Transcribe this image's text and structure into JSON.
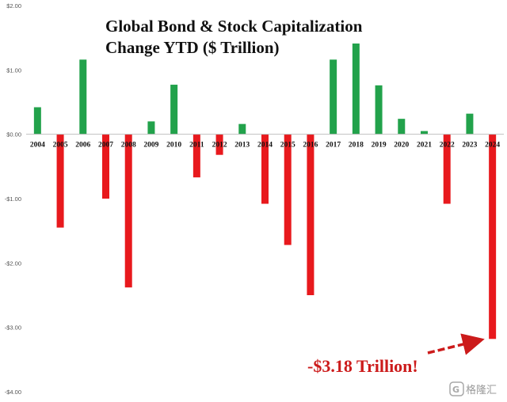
{
  "chart_data": {
    "type": "bar",
    "title_lines": [
      "Global Bond & Stock Capitalization",
      "Change YTD ($ Trillion)"
    ],
    "categories": [
      "2004",
      "2005",
      "2006",
      "2007",
      "2008",
      "2009",
      "2010",
      "2011",
      "2012",
      "2013",
      "2014",
      "2015",
      "2016",
      "2017",
      "2018",
      "2019",
      "2020",
      "2021",
      "2022",
      "2023",
      "2024"
    ],
    "values": [
      0.42,
      -1.45,
      1.16,
      -1.0,
      -2.38,
      0.2,
      0.77,
      -0.67,
      -0.32,
      0.16,
      -1.08,
      -1.72,
      -2.5,
      1.16,
      1.41,
      0.76,
      0.24,
      0.05,
      -1.08,
      0.32,
      -3.18
    ],
    "ylim": [
      -4.0,
      2.0
    ],
    "yticks": [
      2,
      1,
      0,
      -1,
      -2,
      -3,
      -4
    ],
    "ytick_labels": [
      "$2.00",
      "$1.00",
      "$0.00",
      "-$1.00",
      "-$2.00",
      "-$3.00",
      "-$4.00"
    ],
    "xlabel": "",
    "ylabel": "",
    "grid": false,
    "colors": {
      "positive": "#22a24b",
      "negative": "#e8191d"
    },
    "annotation": {
      "text": "-$3.18 Trillion!",
      "target": "2024",
      "color": "#cc1b1b"
    }
  },
  "watermark": {
    "text": "格隆汇",
    "icon": "g-logo-icon"
  }
}
